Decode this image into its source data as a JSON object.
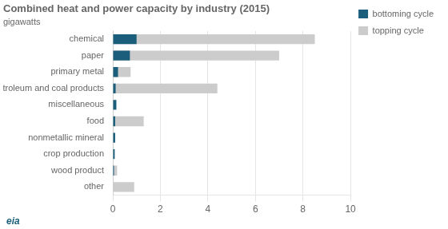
{
  "chart_data": {
    "type": "bar",
    "orientation": "horizontal",
    "title": "Combined heat and power capacity by industry (2015)",
    "subtitle": "gigawatts",
    "categories": [
      "other",
      "wood product",
      "crop production",
      "nonmetallic mineral",
      "food",
      "miscellaneous",
      "petroleum and coal products",
      "primary metal",
      "paper",
      "chemical"
    ],
    "series": [
      {
        "name": "bottoming cycle",
        "color": "#1b5e7b",
        "values": [
          0.0,
          0.05,
          0.08,
          0.1,
          0.1,
          0.15,
          0.12,
          0.22,
          0.72,
          1.0
        ]
      },
      {
        "name": "topping cycle",
        "color": "#cccccc",
        "values": [
          0.9,
          0.18,
          0.0,
          0.0,
          1.3,
          0.0,
          4.4,
          0.75,
          7.0,
          8.5
        ]
      }
    ],
    "xlim": [
      0,
      10
    ],
    "xticks": [
      0,
      2,
      4,
      6,
      8,
      10
    ],
    "grid": true,
    "legend": "right",
    "stacked": false,
    "annotation": "eia"
  }
}
